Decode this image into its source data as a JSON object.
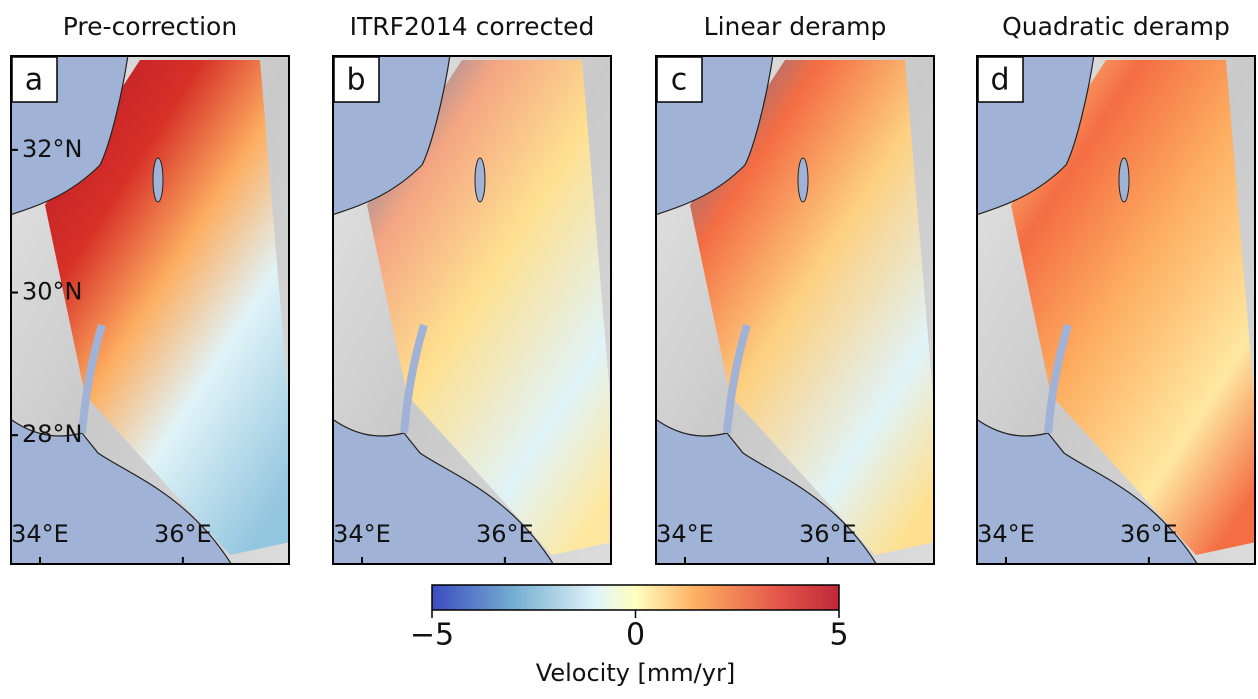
{
  "panels": [
    {
      "letter": "a",
      "title": "Pre-correction"
    },
    {
      "letter": "b",
      "title": "ITRF2014 corrected"
    },
    {
      "letter": "c",
      "title": "Linear deramp"
    },
    {
      "letter": "d",
      "title": "Quadratic deramp"
    }
  ],
  "map": {
    "xlim": [
      33.58,
      37.5
    ],
    "ylim": [
      26.18,
      33.33
    ],
    "xticks": [
      {
        "value": 34,
        "label": "34°E"
      },
      {
        "value": 36,
        "label": "36°E"
      }
    ],
    "yticks": [
      {
        "value": 32,
        "label": "32°N"
      },
      {
        "value": 30,
        "label": "30°N"
      },
      {
        "value": 28,
        "label": "28°N"
      }
    ]
  },
  "colorbar": {
    "lim": [
      -5,
      5
    ],
    "ticks": [
      {
        "value": -5,
        "label": "−5"
      },
      0,
      5
    ],
    "label": "Velocity [mm/yr]"
  }
}
